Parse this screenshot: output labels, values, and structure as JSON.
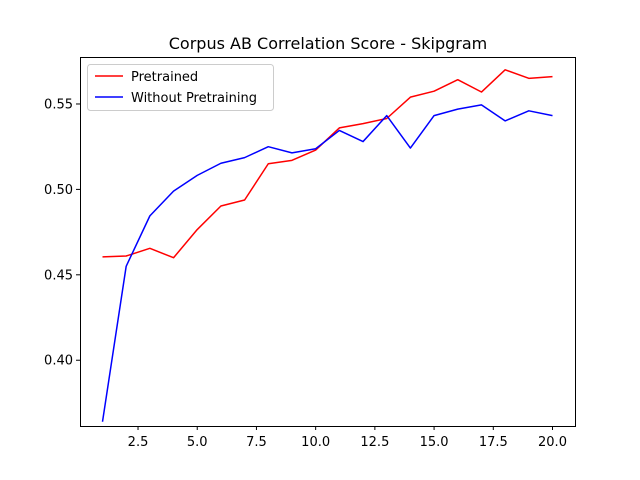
{
  "chart_data": {
    "type": "line",
    "title": "Corpus AB Correlation Score - Skipgram",
    "xlabel": "",
    "ylabel": "",
    "xlim": [
      0.05,
      20.95
    ],
    "ylim": [
      0.3615,
      0.5775
    ],
    "grid": false,
    "legend_position": "upper-left",
    "x_ticks": [
      2.5,
      5.0,
      7.5,
      10.0,
      12.5,
      15.0,
      17.5,
      20.0
    ],
    "x_tick_labels": [
      "2.5",
      "5.0",
      "7.5",
      "10.0",
      "12.5",
      "15.0",
      "17.5",
      "20.0"
    ],
    "y_ticks": [
      0.4,
      0.45,
      0.5,
      0.55
    ],
    "y_tick_labels": [
      "0.40",
      "0.45",
      "0.50",
      "0.55"
    ],
    "x": [
      1,
      2,
      3,
      4,
      5,
      6,
      7,
      8,
      9,
      10,
      11,
      12,
      13,
      14,
      15,
      16,
      17,
      18,
      19,
      20
    ],
    "series": [
      {
        "name": "Pretrained",
        "color": "#ff0000",
        "values": [
          0.4605,
          0.461,
          0.4655,
          0.46,
          0.4765,
          0.4903,
          0.4938,
          0.515,
          0.517,
          0.523,
          0.536,
          0.5385,
          0.5415,
          0.554,
          0.5575,
          0.5642,
          0.557,
          0.57,
          0.565,
          0.566
        ]
      },
      {
        "name": "Without Pretraining",
        "color": "#0000ff",
        "values": [
          0.364,
          0.455,
          0.4845,
          0.499,
          0.5082,
          0.5153,
          0.5186,
          0.525,
          0.5214,
          0.5238,
          0.5345,
          0.528,
          0.5432,
          0.5242,
          0.5432,
          0.547,
          0.5495,
          0.5401,
          0.546,
          0.5432
        ]
      }
    ]
  }
}
